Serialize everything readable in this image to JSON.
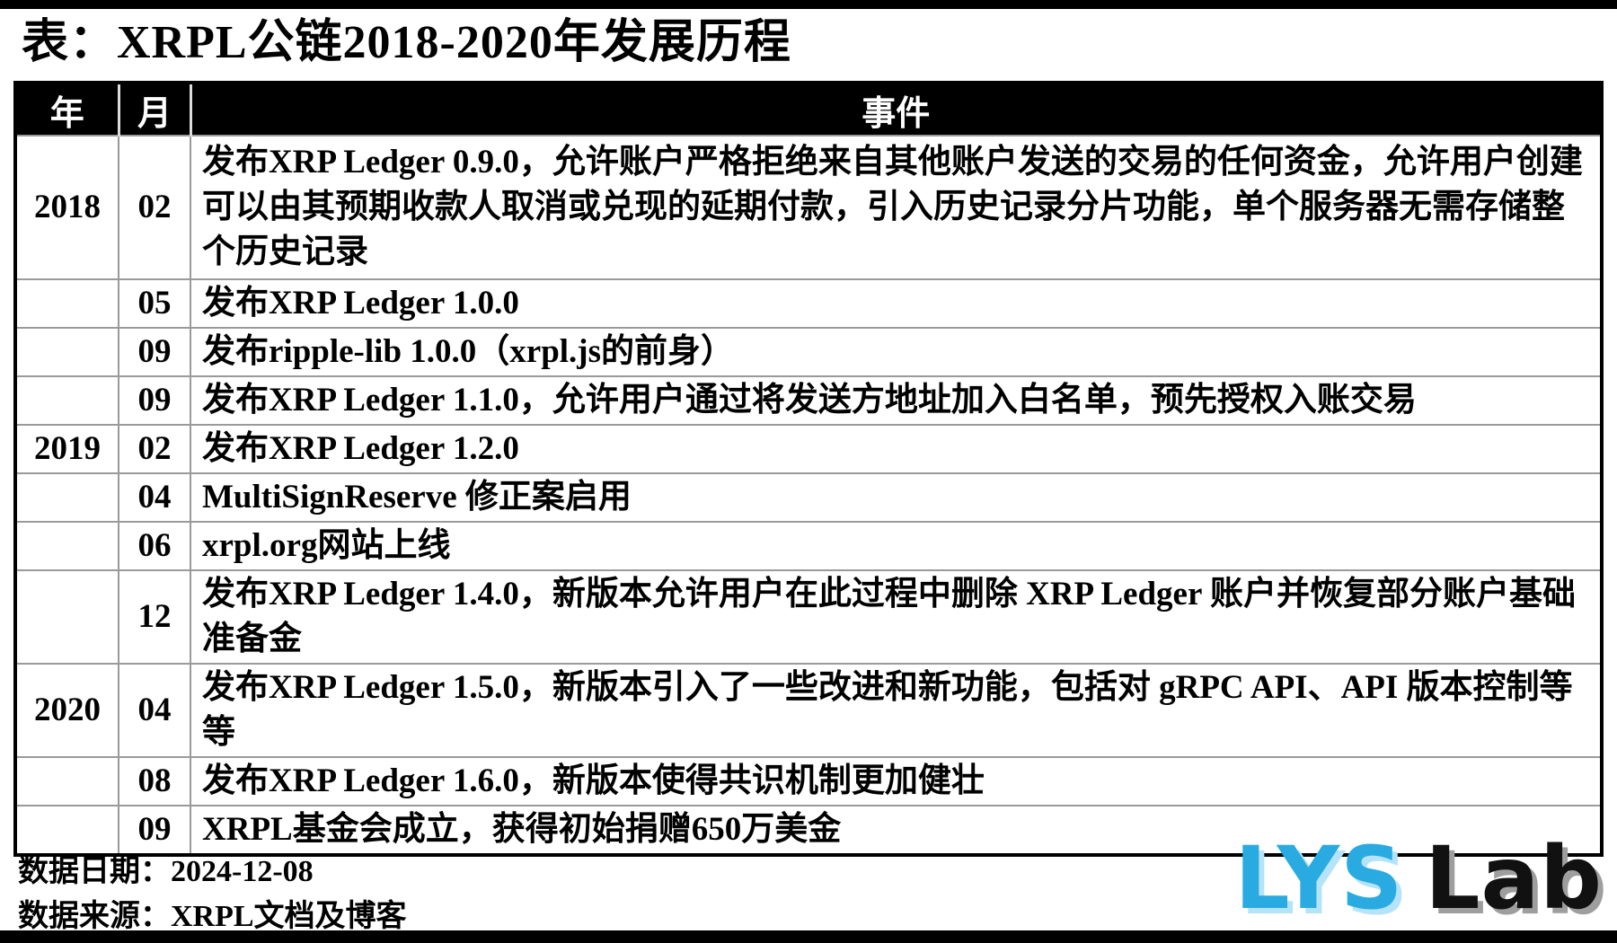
{
  "page": {
    "title": "表：XRPL公链2018-2020年发展历程",
    "footer": {
      "date": "数据日期：2024-12-08",
      "source": "数据来源：XRPL文档及博客"
    },
    "logo": {
      "primary": "LYS",
      "secondary": "Lab",
      "primary_color": "#29ABE2",
      "secondary_color": "#111111"
    }
  },
  "chart_data": {
    "type": "table",
    "title": "表：XRPL公链2018-2020年发展历程",
    "columns": [
      "年",
      "月",
      "事件"
    ],
    "rows": [
      [
        "2018",
        "02",
        "发布XRP Ledger 0.9.0，允许账户严格拒绝来自其他账户发送的交易的任何资金，允许用户创建可以由其预期收款人取消或兑现的延期付款，引入历史记录分片功能，单个服务器无需存储整个历史记录"
      ],
      [
        "",
        "05",
        "发布XRP Ledger 1.0.0"
      ],
      [
        "",
        "09",
        "发布ripple-lib 1.0.0（xrpl.js的前身）"
      ],
      [
        "",
        "09",
        "发布XRP Ledger 1.1.0，允许用户通过将发送方地址加入白名单，预先授权入账交易"
      ],
      [
        "2019",
        "02",
        "发布XRP Ledger 1.2.0"
      ],
      [
        "",
        "04",
        "MultiSignReserve 修正案启用"
      ],
      [
        "",
        "06",
        "xrpl.org网站上线"
      ],
      [
        "",
        "12",
        "发布XRP Ledger 1.4.0，新版本允许用户在此过程中删除 XRP Ledger 账户并恢复部分账户基础准备金"
      ],
      [
        "2020",
        "04",
        "发布XRP Ledger 1.5.0，新版本引入了一些改进和新功能，包括对 gRPC API、API 版本控制等等"
      ],
      [
        "",
        "08",
        "发布XRP Ledger 1.6.0，新版本使得共识机制更加健壮"
      ],
      [
        "",
        "09",
        "XRPL基金会成立，获得初始捐赠650万美金"
      ]
    ],
    "notes": [
      "数据日期：2024-12-08",
      "数据来源：XRPL文档及博客"
    ],
    "layout": {
      "grid": "ruled table, black header row, gray inner rules",
      "legend_position": "none"
    }
  }
}
